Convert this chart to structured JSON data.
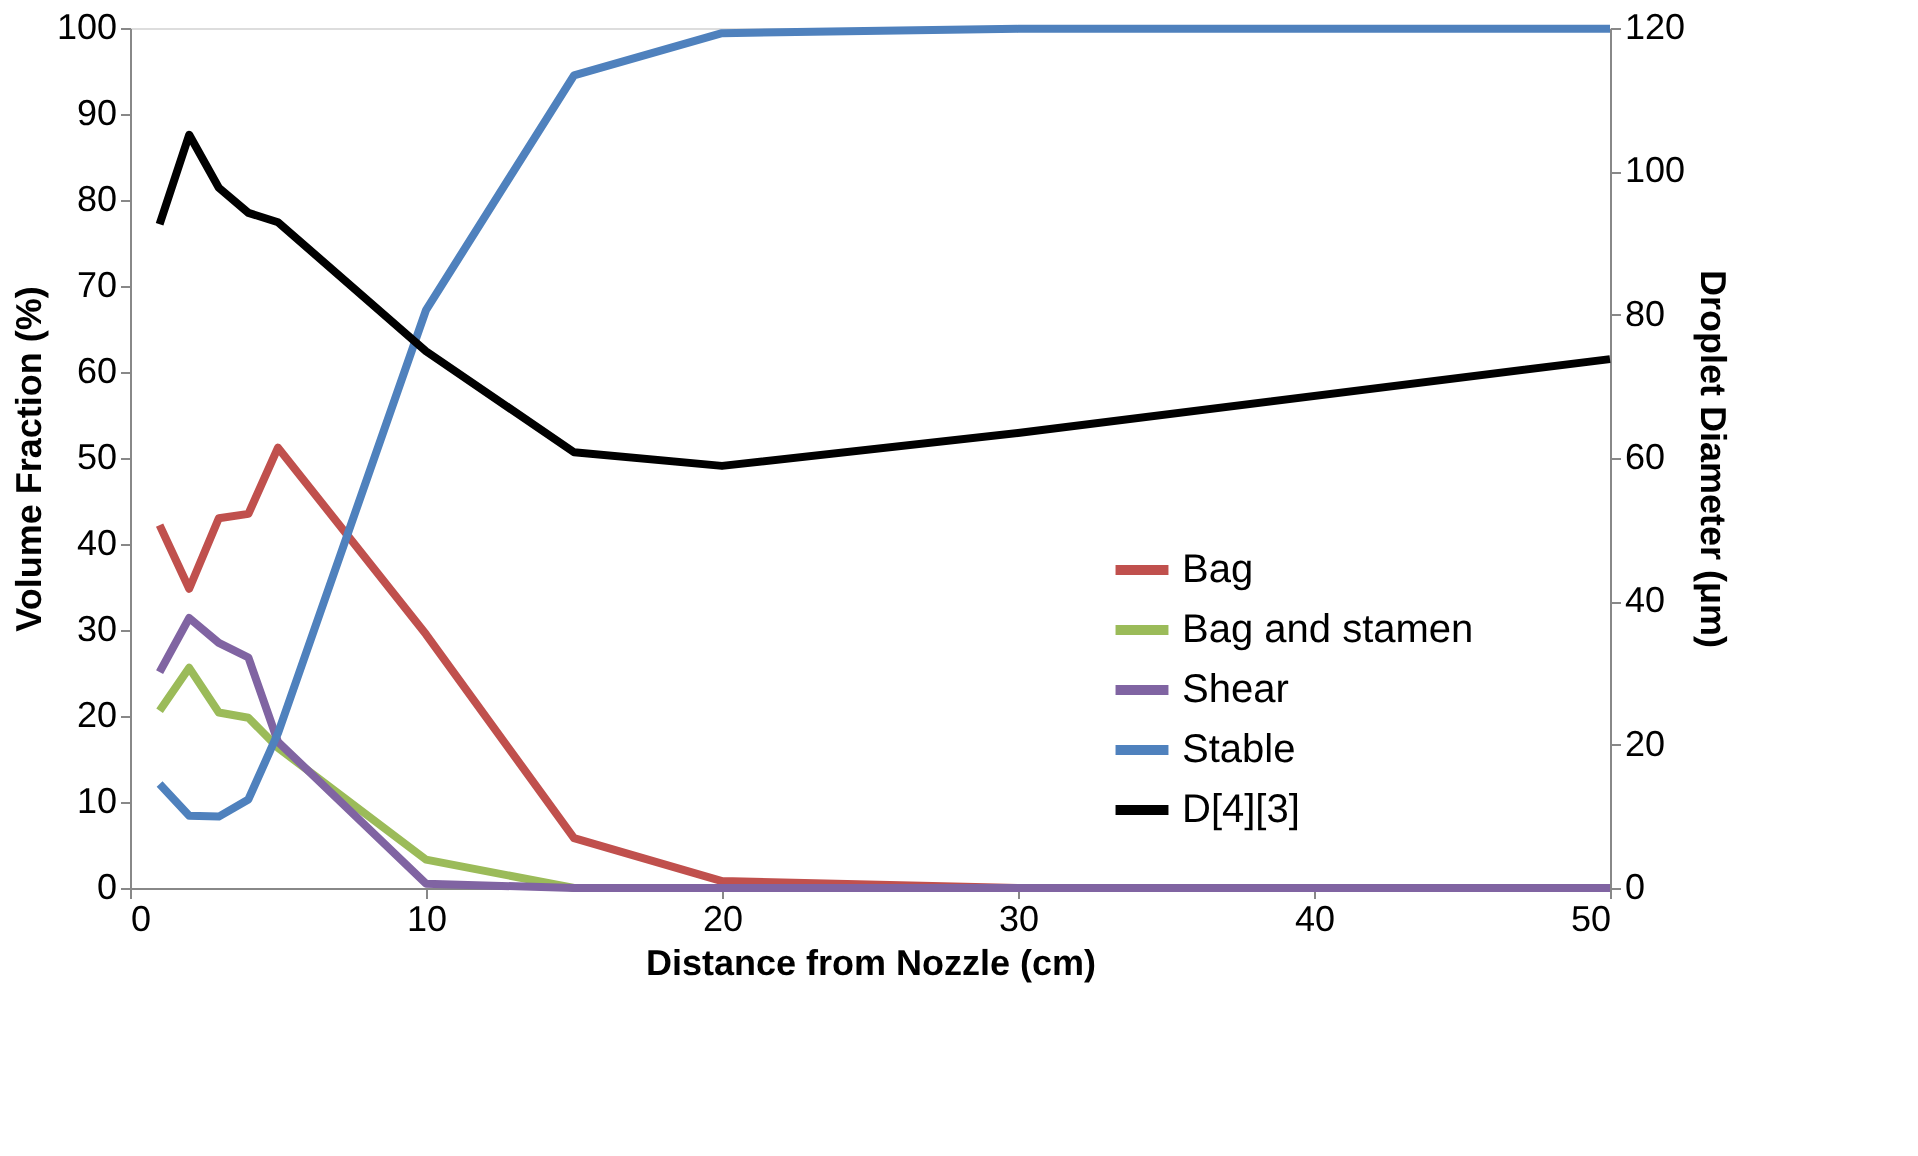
{
  "chart_data": {
    "type": "line",
    "xlabel": "Distance from Nozzle (cm)",
    "ylabel": "Volume Fraction (%)",
    "y2label": "Droplet Diameter (μm)",
    "x": [
      1,
      2,
      3,
      4,
      5,
      10,
      15,
      20,
      30,
      50
    ],
    "series": [
      {
        "name": "Bag",
        "color": "#c0504d",
        "values": [
          42.2,
          34.8,
          43,
          43.5,
          51.2,
          29.5,
          5.8,
          0.8,
          0,
          0
        ]
      },
      {
        "name": "Bag and stamen",
        "color": "#9bbb59",
        "values": [
          20.6,
          25.6,
          20.4,
          19.8,
          16.3,
          3.3,
          0,
          0,
          null,
          null
        ]
      },
      {
        "name": "Shear",
        "color": "#8064a2",
        "values": [
          25.1,
          31.4,
          28.5,
          26.8,
          17,
          0.5,
          0,
          0,
          0,
          0
        ]
      },
      {
        "name": "Stable",
        "color": "#4f81bd",
        "values": [
          12.1,
          8.4,
          8.3,
          10.3,
          18,
          67.2,
          94.5,
          99.4,
          99.9,
          99.9
        ]
      },
      {
        "name": "D[4][3]",
        "color": "#000000",
        "axis": "y2",
        "values": [
          92.6,
          105.1,
          97.7,
          94.2,
          92.9,
          74.9,
          60.8,
          58.9,
          63.5,
          73.8
        ]
      }
    ],
    "xlim": [
      0,
      50
    ],
    "xticks": [
      0,
      10,
      20,
      30,
      40,
      50
    ],
    "ylim": [
      0,
      100
    ],
    "yticks": [
      0,
      10,
      20,
      30,
      40,
      50,
      60,
      70,
      80,
      90,
      100
    ],
    "y2lim": [
      0,
      120
    ],
    "y2ticks": [
      0,
      20,
      40,
      60,
      80,
      100,
      120
    ],
    "grid": false,
    "legend": "right",
    "marker": "none",
    "line_style": "solid"
  }
}
